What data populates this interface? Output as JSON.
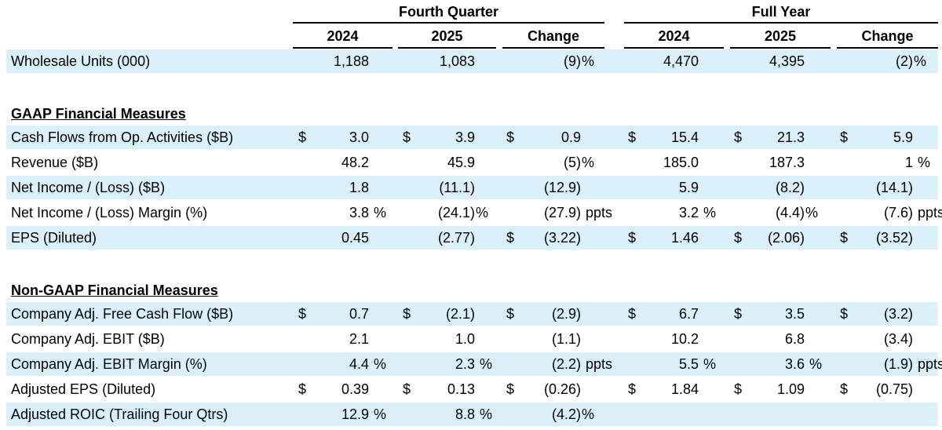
{
  "header": {
    "groups": [
      "Fourth Quarter",
      "Full Year"
    ],
    "columns": [
      "2024",
      "2025",
      "Change",
      "2024",
      "2025",
      "Change"
    ]
  },
  "sections": [
    {
      "rows": [
        {
          "label": "Wholesale Units (000)",
          "shaded": true,
          "cells": [
            {
              "value": "1,188"
            },
            {
              "value": "1,083"
            },
            {
              "value": "(9)",
              "suffix": "%"
            },
            {
              "value": "4,470"
            },
            {
              "value": "4,395"
            },
            {
              "value": "(2)",
              "suffix": "%"
            }
          ]
        }
      ]
    },
    {
      "title": "GAAP Financial Measures",
      "rows": [
        {
          "label": "Cash Flows from Op. Activities ($B)",
          "shaded": true,
          "cells": [
            {
              "dollar": "$",
              "value": "3.0"
            },
            {
              "dollar": "$",
              "value": "3.9"
            },
            {
              "dollar": "$",
              "value": "0.9"
            },
            {
              "dollar": "$",
              "value": "15.4"
            },
            {
              "dollar": "$",
              "value": "21.3"
            },
            {
              "dollar": "$",
              "value": "5.9"
            }
          ]
        },
        {
          "label": "Revenue ($B)",
          "shaded": false,
          "cells": [
            {
              "value": "48.2"
            },
            {
              "value": "45.9"
            },
            {
              "value": "(5)",
              "suffix": "%"
            },
            {
              "value": "185.0"
            },
            {
              "value": "187.3"
            },
            {
              "value": "1",
              "suffix": "%"
            }
          ]
        },
        {
          "label": "Net Income / (Loss) ($B)",
          "shaded": true,
          "cells": [
            {
              "value": "1.8"
            },
            {
              "value": "(11.1)"
            },
            {
              "value": "(12.9)"
            },
            {
              "value": "5.9"
            },
            {
              "value": "(8.2)"
            },
            {
              "value": "(14.1)"
            }
          ]
        },
        {
          "label": "Net Income / (Loss) Margin (%)",
          "shaded": false,
          "cells": [
            {
              "value": "3.8",
              "suffix": "%"
            },
            {
              "value": "(24.1)",
              "suffix": "%"
            },
            {
              "value": "(27.9)",
              "suffix": "ppts"
            },
            {
              "value": "3.2",
              "suffix": "%"
            },
            {
              "value": "(4.4)",
              "suffix": "%"
            },
            {
              "value": "(7.6)",
              "suffix": "ppts"
            }
          ]
        },
        {
          "label": "EPS (Diluted)",
          "shaded": true,
          "cells": [
            {
              "value": "0.45"
            },
            {
              "value": "(2.77)"
            },
            {
              "dollar": "$",
              "value": "(3.22)"
            },
            {
              "dollar": "$",
              "value": "1.46"
            },
            {
              "dollar": "$",
              "value": "(2.06)"
            },
            {
              "dollar": "$",
              "value": "(3.52)"
            }
          ]
        }
      ]
    },
    {
      "title": "Non-GAAP Financial Measures",
      "rows": [
        {
          "label": "Company Adj. Free Cash Flow ($B)",
          "shaded": true,
          "cells": [
            {
              "dollar": "$",
              "value": "0.7"
            },
            {
              "dollar": "$",
              "value": "(2.1)"
            },
            {
              "dollar": "$",
              "value": "(2.9)"
            },
            {
              "dollar": "$",
              "value": "6.7"
            },
            {
              "dollar": "$",
              "value": "3.5"
            },
            {
              "dollar": "$",
              "value": "(3.2)"
            }
          ]
        },
        {
          "label": "Company Adj. EBIT ($B)",
          "shaded": false,
          "cells": [
            {
              "value": "2.1"
            },
            {
              "value": "1.0"
            },
            {
              "value": "(1.1)"
            },
            {
              "value": "10.2"
            },
            {
              "value": "6.8"
            },
            {
              "value": "(3.4)"
            }
          ]
        },
        {
          "label": "Company Adj. EBIT Margin (%)",
          "shaded": true,
          "cells": [
            {
              "value": "4.4",
              "suffix": "%"
            },
            {
              "value": "2.3",
              "suffix": "%"
            },
            {
              "value": "(2.2)",
              "suffix": "ppts"
            },
            {
              "value": "5.5",
              "suffix": "%"
            },
            {
              "value": "3.6",
              "suffix": "%"
            },
            {
              "value": "(1.9)",
              "suffix": "ppts"
            }
          ]
        },
        {
          "label": "Adjusted EPS (Diluted)",
          "shaded": false,
          "cells": [
            {
              "dollar": "$",
              "value": "0.39"
            },
            {
              "dollar": "$",
              "value": "0.13"
            },
            {
              "dollar": "$",
              "value": "(0.26)"
            },
            {
              "dollar": "$",
              "value": "1.84"
            },
            {
              "dollar": "$",
              "value": "1.09"
            },
            {
              "dollar": "$",
              "value": "(0.75)"
            }
          ]
        },
        {
          "label": "Adjusted ROIC (Trailing Four Qtrs)",
          "shaded": true,
          "cells": [
            {
              "value": "12.9",
              "suffix": "%"
            },
            {
              "value": "8.8",
              "suffix": "%"
            },
            {
              "value": "(4.2)",
              "suffix": "%"
            }
          ]
        }
      ]
    }
  ]
}
